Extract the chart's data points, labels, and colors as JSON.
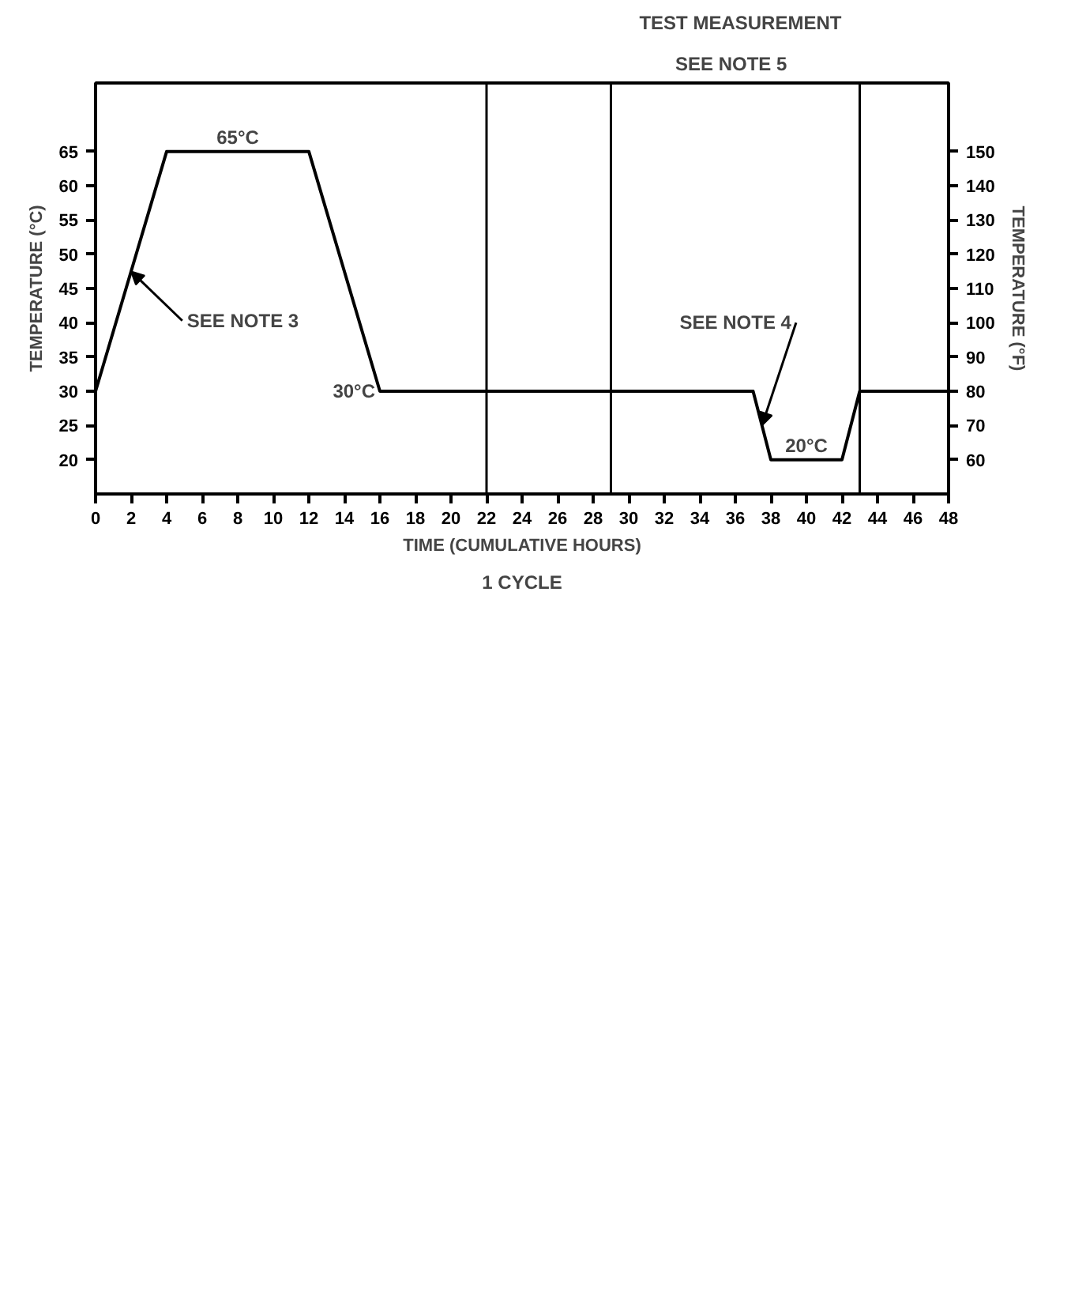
{
  "chart_data": {
    "type": "line",
    "xlabel": "TIME (CUMULATIVE HOURS)",
    "ylabel": "TEMPERATURE (°C)",
    "y2label": "TEMPERATURE (°F)",
    "x": [
      0,
      4,
      12,
      16,
      37,
      38,
      42,
      43,
      48
    ],
    "series": [
      {
        "color": "#000000",
        "values": [
          30,
          65,
          65,
          30,
          30,
          20,
          20,
          30,
          30
        ]
      }
    ],
    "xlim": [
      0,
      48
    ],
    "xticks": [
      0,
      2,
      4,
      6,
      8,
      10,
      12,
      14,
      16,
      18,
      20,
      22,
      24,
      26,
      28,
      30,
      32,
      34,
      36,
      38,
      40,
      42,
      44,
      46,
      48
    ],
    "ylim": [
      15,
      75
    ],
    "yticks": [
      20,
      25,
      30,
      35,
      40,
      45,
      50,
      55,
      60,
      65
    ],
    "y2lim": [
      50,
      170
    ],
    "y2ticks": [
      60,
      70,
      80,
      90,
      100,
      110,
      120,
      130,
      140,
      150
    ],
    "grid": false,
    "marker": "none",
    "line_style": "solid",
    "ref_lines": [
      {
        "axis": "x",
        "value": 22,
        "label": null
      },
      {
        "axis": "x",
        "value": 29,
        "label": null
      },
      {
        "axis": "x",
        "value": 43,
        "label": null
      }
    ],
    "annotations": [
      {
        "text": "65°C",
        "x": 8,
        "y": 65
      },
      {
        "text": "30°C",
        "x": 16,
        "y": 30
      },
      {
        "text": "20°C",
        "x": 40,
        "y": 20
      },
      {
        "text": "SEE NOTE 3",
        "x": 2,
        "y": 47.5
      },
      {
        "text": "SEE NOTE 4",
        "x": 37.5,
        "y": 25
      },
      "TEST MEASUREMENT",
      "SEE NOTE 5",
      "1 CYCLE"
    ]
  }
}
